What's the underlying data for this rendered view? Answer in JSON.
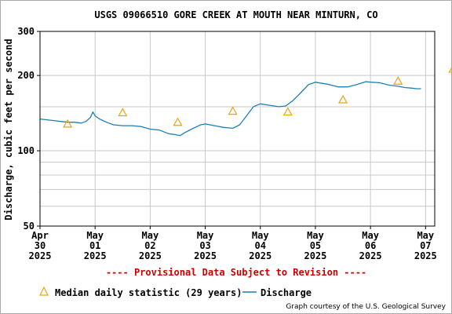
{
  "chart_data": {
    "type": "line",
    "title": "USGS 09066510 GORE CREEK AT MOUTH NEAR MINTURN, CO",
    "ylabel": "Discharge, cubic feet per second",
    "yscale": "log",
    "ylim": [
      50,
      300
    ],
    "yticks": [
      "300",
      "200",
      "100",
      "50"
    ],
    "ytick_values": [
      300,
      200,
      100,
      50
    ],
    "y_minor_gridlines": [
      60,
      70,
      80,
      90,
      150
    ],
    "xlim": [
      "2025-04-30T00:00",
      "2025-05-07T04:00"
    ],
    "xticks": [
      {
        "date": "2025-04-30",
        "lines": [
          "Apr",
          "30",
          "2025"
        ]
      },
      {
        "date": "2025-05-01",
        "lines": [
          "May",
          "01",
          "2025"
        ]
      },
      {
        "date": "2025-05-02",
        "lines": [
          "May",
          "02",
          "2025"
        ]
      },
      {
        "date": "2025-05-03",
        "lines": [
          "May",
          "03",
          "2025"
        ]
      },
      {
        "date": "2025-05-04",
        "lines": [
          "May",
          "04",
          "2025"
        ]
      },
      {
        "date": "2025-05-05",
        "lines": [
          "May",
          "05",
          "2025"
        ]
      },
      {
        "date": "2025-05-06",
        "lines": [
          "May",
          "06",
          "2025"
        ]
      },
      {
        "date": "2025-05-07",
        "lines": [
          "May",
          "07",
          "2025"
        ]
      }
    ],
    "grid": true,
    "series": [
      {
        "name": "Discharge",
        "color": "#1f7fb4",
        "points": [
          [
            "2025-04-30T00:00",
            134
          ],
          [
            "2025-04-30T03:00",
            133
          ],
          [
            "2025-04-30T06:00",
            132
          ],
          [
            "2025-04-30T09:00",
            131
          ],
          [
            "2025-04-30T12:00",
            130
          ],
          [
            "2025-04-30T15:00",
            130
          ],
          [
            "2025-04-30T18:00",
            129
          ],
          [
            "2025-04-30T20:00",
            131
          ],
          [
            "2025-04-30T22:00",
            136
          ],
          [
            "2025-04-30T23:00",
            143
          ],
          [
            "2025-05-01T00:00",
            138
          ],
          [
            "2025-05-01T02:00",
            134
          ],
          [
            "2025-05-01T05:00",
            130
          ],
          [
            "2025-05-01T08:00",
            127
          ],
          [
            "2025-05-01T12:00",
            126
          ],
          [
            "2025-05-01T16:00",
            126
          ],
          [
            "2025-05-01T20:00",
            125
          ],
          [
            "2025-05-02T00:00",
            122
          ],
          [
            "2025-05-02T04:00",
            121
          ],
          [
            "2025-05-02T08:00",
            117
          ],
          [
            "2025-05-02T11:00",
            116
          ],
          [
            "2025-05-02T13:00",
            115
          ],
          [
            "2025-05-02T15:00",
            118
          ],
          [
            "2025-05-02T18:00",
            122
          ],
          [
            "2025-05-02T22:00",
            127
          ],
          [
            "2025-05-03T00:00",
            128
          ],
          [
            "2025-05-03T04:00",
            126
          ],
          [
            "2025-05-03T08:00",
            124
          ],
          [
            "2025-05-03T12:00",
            123
          ],
          [
            "2025-05-03T15:00",
            127
          ],
          [
            "2025-05-03T18:00",
            138
          ],
          [
            "2025-05-03T21:00",
            150
          ],
          [
            "2025-05-04T00:00",
            154
          ],
          [
            "2025-05-04T04:00",
            152
          ],
          [
            "2025-05-04T08:00",
            150
          ],
          [
            "2025-05-04T11:00",
            151
          ],
          [
            "2025-05-04T14:00",
            158
          ],
          [
            "2025-05-04T18:00",
            172
          ],
          [
            "2025-05-04T21:00",
            184
          ],
          [
            "2025-05-05T00:00",
            188
          ],
          [
            "2025-05-05T03:00",
            186
          ],
          [
            "2025-05-05T06:00",
            184
          ],
          [
            "2025-05-05T10:00",
            180
          ],
          [
            "2025-05-05T14:00",
            180
          ],
          [
            "2025-05-05T18:00",
            184
          ],
          [
            "2025-05-05T22:00",
            189
          ],
          [
            "2025-05-06T00:00",
            188
          ],
          [
            "2025-05-06T04:00",
            187
          ],
          [
            "2025-05-06T08:00",
            183
          ],
          [
            "2025-05-06T12:00",
            181
          ],
          [
            "2025-05-06T15:00",
            179
          ],
          [
            "2025-05-06T18:00",
            178
          ],
          [
            "2025-05-06T20:00",
            177
          ],
          [
            "2025-05-06T22:00",
            177
          ]
        ]
      },
      {
        "name": "Median daily statistic (29 years)",
        "color": "#e8a317",
        "marker": "triangle",
        "points": [
          [
            "2025-04-30T12:00",
            128
          ],
          [
            "2025-05-01T12:00",
            142
          ],
          [
            "2025-05-02T12:00",
            130
          ],
          [
            "2025-05-03T12:00",
            144
          ],
          [
            "2025-05-04T12:00",
            143
          ],
          [
            "2025-05-05T12:00",
            160
          ],
          [
            "2025-05-06T12:00",
            190
          ],
          [
            "2025-05-07T12:00",
            212
          ]
        ]
      }
    ]
  },
  "provisional_note": "---- Provisional Data Subject to Revision ----",
  "legend": {
    "median_label": "Median daily statistic (29 years)",
    "discharge_label": "Discharge"
  },
  "credit": "Graph courtesy of the U.S. Geological Survey"
}
